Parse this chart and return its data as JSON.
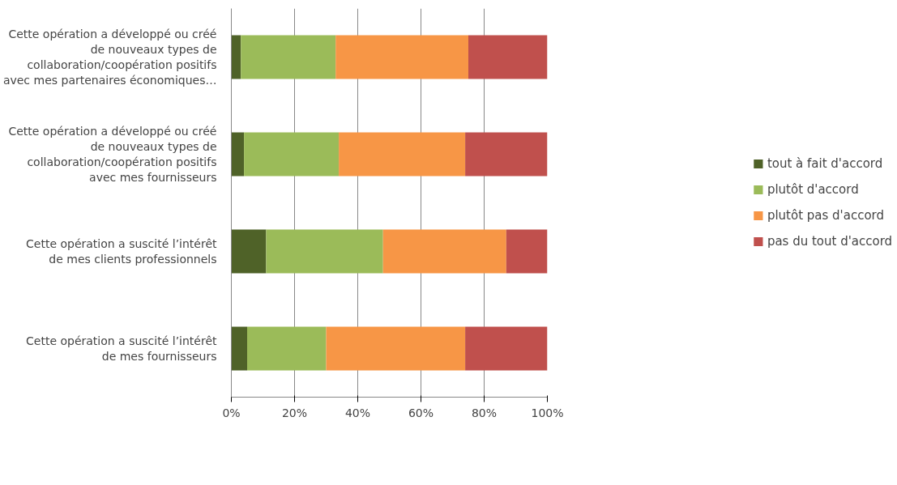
{
  "chart_data": {
    "type": "bar",
    "orientation": "horizontal",
    "stacked": true,
    "categories": [
      "Cette opération a développé ou créé de nouveaux types de collaboration/coopération positifs avec mes partenaires économiques…",
      "Cette opération a développé ou créé de nouveaux types de collaboration/coopération positifs avec mes fournisseurs",
      "Cette opération a suscité l’intérêt de mes clients professionnels",
      "Cette opération a suscité l’intérêt de mes fournisseurs"
    ],
    "series": [
      {
        "name": "tout à fait d'accord",
        "color": "#4f6228",
        "values": [
          3,
          4,
          11,
          5
        ]
      },
      {
        "name": "plutôt d'accord",
        "color": "#9bbb59",
        "values": [
          30,
          30,
          37,
          25
        ]
      },
      {
        "name": "plutôt pas d'accord",
        "color": "#f79646",
        "values": [
          42,
          40,
          39,
          44
        ]
      },
      {
        "name": "pas du tout d'accord",
        "color": "#c0504d",
        "values": [
          25,
          26,
          13,
          26
        ]
      }
    ],
    "xlim": [
      0,
      100
    ],
    "xticks": [
      {
        "value": 0,
        "label": "0%"
      },
      {
        "value": 20,
        "label": "20%"
      },
      {
        "value": 40,
        "label": "40%"
      },
      {
        "value": 60,
        "label": "60%"
      },
      {
        "value": 80,
        "label": "80%"
      },
      {
        "value": 100,
        "label": "100%"
      }
    ],
    "grid": "x",
    "legend": "right"
  }
}
